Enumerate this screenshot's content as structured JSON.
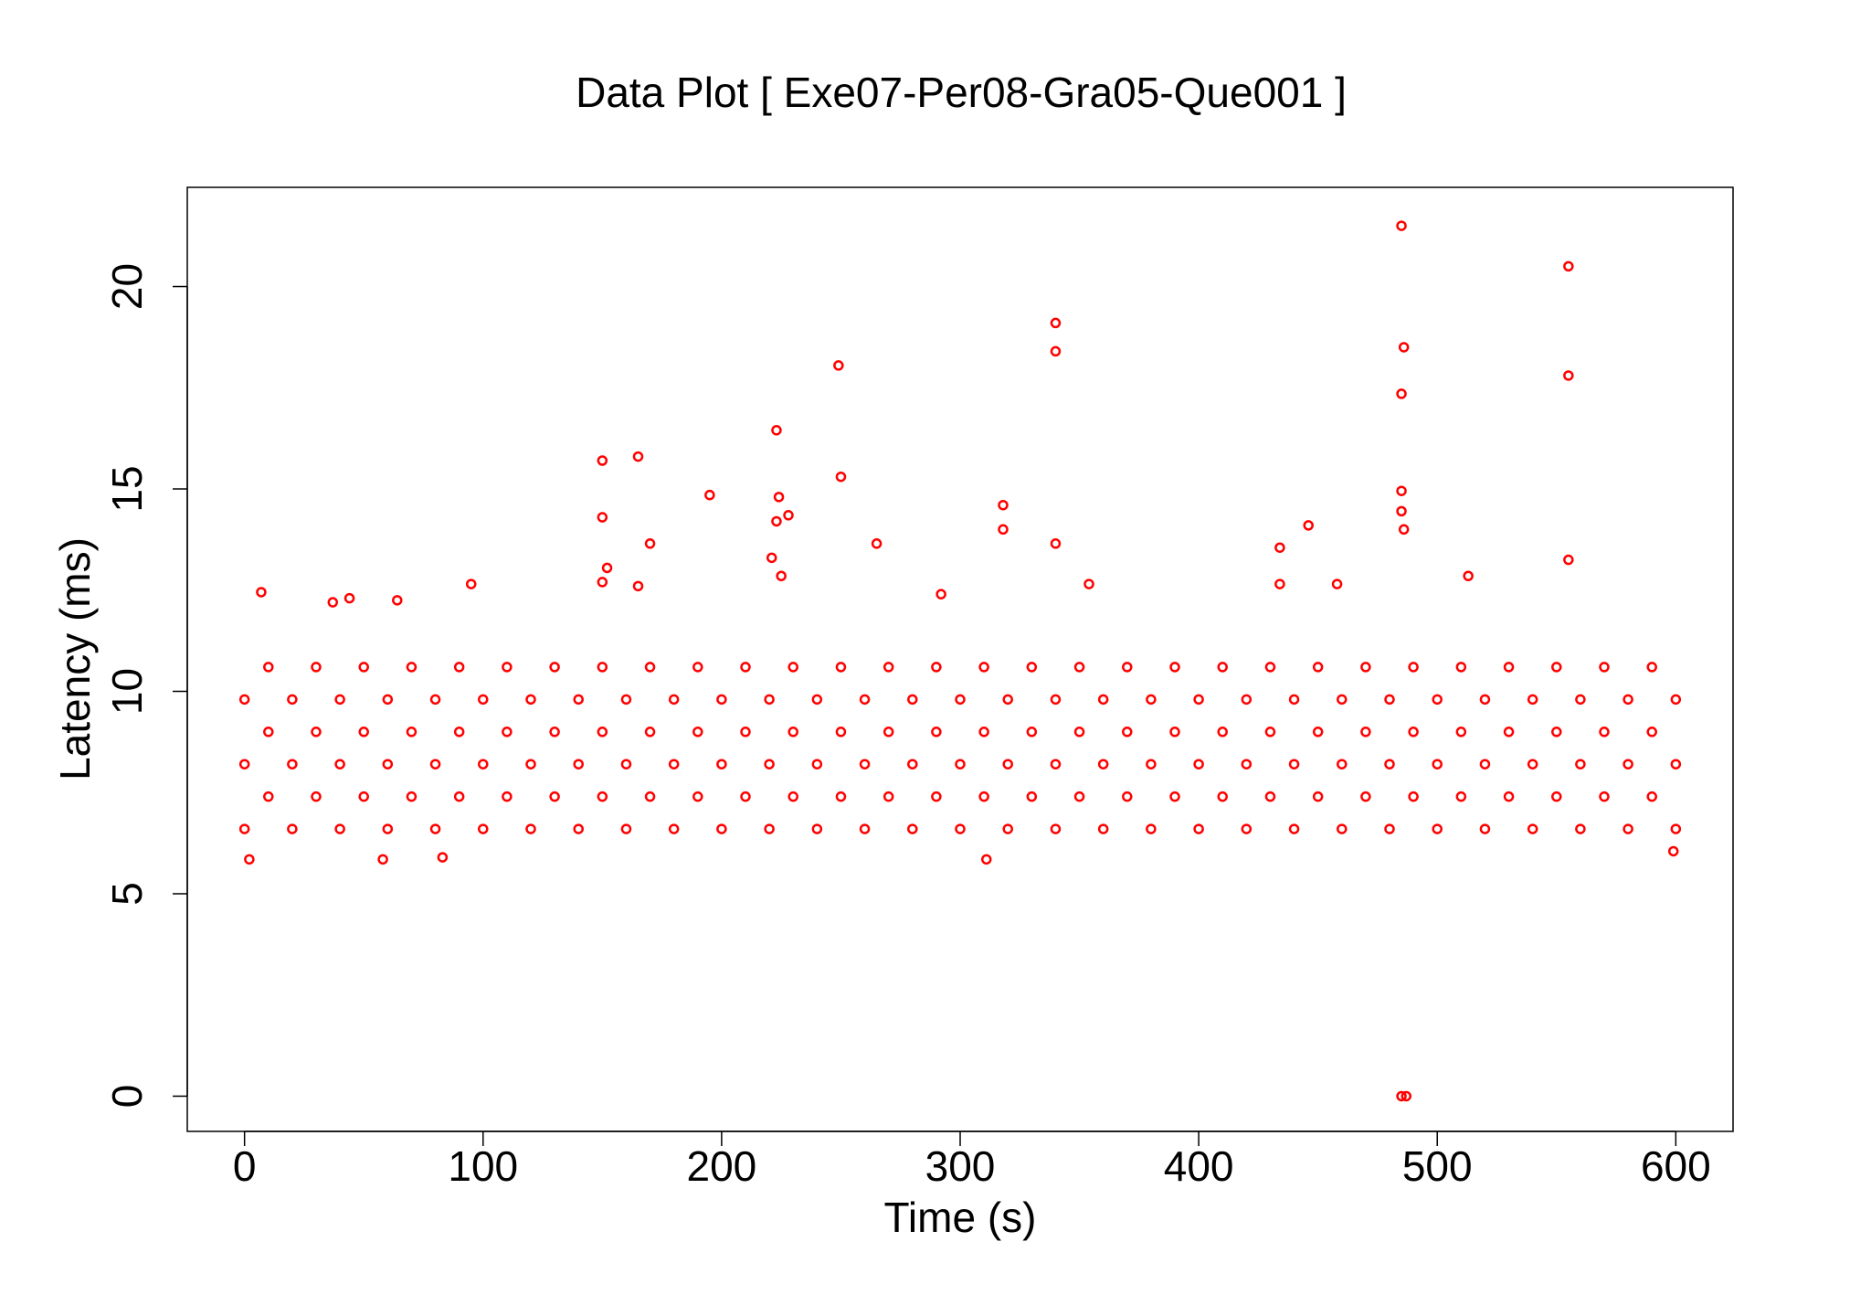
{
  "chart_data": {
    "type": "scatter",
    "title": "Data Plot [ Exe07-Per08-Gra05-Que001 ]",
    "x_label": "Time (s)",
    "y_label": "Latency (ms)",
    "xlim": [
      -24,
      624
    ],
    "ylim": [
      -0.87,
      22.45
    ],
    "xticks": [
      0,
      100,
      200,
      300,
      400,
      500,
      600
    ],
    "yticks": [
      0,
      5,
      10,
      15,
      20
    ],
    "grid": false,
    "series": [
      {
        "color": "#ff0000",
        "x": [
          485,
          555,
          340,
          340,
          249,
          486,
          485,
          555,
          223,
          150,
          165,
          250,
          195,
          224,
          228,
          223,
          150,
          318,
          318,
          485,
          485,
          486,
          446,
          265,
          340,
          170,
          434,
          555,
          221,
          152,
          225,
          513,
          7,
          44,
          64,
          95,
          37,
          150,
          165,
          292,
          354,
          434,
          458,
          485,
          487,
          2,
          58,
          83,
          311,
          599,
          0,
          20,
          40,
          60,
          80,
          100,
          120,
          140,
          160,
          180,
          200,
          220,
          240,
          260,
          280,
          300,
          320,
          340,
          360,
          380,
          400,
          420,
          440,
          460,
          480,
          500,
          520,
          540,
          560,
          580,
          600,
          10,
          30,
          50,
          70,
          90,
          110,
          130,
          150,
          170,
          190,
          210,
          230,
          250,
          270,
          290,
          310,
          330,
          350,
          370,
          390,
          410,
          430,
          450,
          470,
          490,
          510,
          530,
          550,
          570,
          590,
          0,
          20,
          40,
          60,
          80,
          100,
          120,
          140,
          160,
          180,
          200,
          220,
          240,
          260,
          280,
          300,
          320,
          340,
          360,
          380,
          400,
          420,
          440,
          460,
          480,
          500,
          520,
          540,
          560,
          580,
          600,
          10,
          30,
          50,
          70,
          90,
          110,
          130,
          150,
          170,
          190,
          210,
          230,
          250,
          270,
          290,
          310,
          330,
          350,
          370,
          390,
          410,
          430,
          450,
          470,
          490,
          510,
          530,
          550,
          570,
          590,
          0,
          20,
          40,
          60,
          80,
          100,
          120,
          140,
          160,
          180,
          200,
          220,
          240,
          260,
          280,
          300,
          320,
          340,
          360,
          380,
          400,
          420,
          440,
          460,
          480,
          500,
          520,
          540,
          560,
          580,
          600,
          10,
          30,
          50,
          70,
          90,
          110,
          130,
          150,
          170,
          190,
          210,
          230,
          250,
          270,
          290,
          310,
          330,
          350,
          370,
          390,
          410,
          430,
          450,
          470,
          490,
          510,
          530,
          550,
          570,
          590
        ],
        "y": [
          21.5,
          20.5,
          19.1,
          18.4,
          18.05,
          18.5,
          17.35,
          17.8,
          16.45,
          15.7,
          15.8,
          15.3,
          14.85,
          14.8,
          14.35,
          14.2,
          14.3,
          14.6,
          14.0,
          14.95,
          14.45,
          14.0,
          14.1,
          13.65,
          13.65,
          13.65,
          13.55,
          13.25,
          13.3,
          13.05,
          12.85,
          12.85,
          12.45,
          12.3,
          12.25,
          12.65,
          12.2,
          12.7,
          12.6,
          12.4,
          12.65,
          12.65,
          12.65,
          0,
          0,
          5.85,
          5.85,
          5.9,
          5.85,
          6.05,
          6.6,
          6.6,
          6.6,
          6.6,
          6.6,
          6.6,
          6.6,
          6.6,
          6.6,
          6.6,
          6.6,
          6.6,
          6.6,
          6.6,
          6.6,
          6.6,
          6.6,
          6.6,
          6.6,
          6.6,
          6.6,
          6.6,
          6.6,
          6.6,
          6.6,
          6.6,
          6.6,
          6.6,
          6.6,
          6.6,
          6.6,
          7.4,
          7.4,
          7.4,
          7.4,
          7.4,
          7.4,
          7.4,
          7.4,
          7.4,
          7.4,
          7.4,
          7.4,
          7.4,
          7.4,
          7.4,
          7.4,
          7.4,
          7.4,
          7.4,
          7.4,
          7.4,
          7.4,
          7.4,
          7.4,
          7.4,
          7.4,
          7.4,
          7.4,
          7.4,
          7.4,
          8.2,
          8.2,
          8.2,
          8.2,
          8.2,
          8.2,
          8.2,
          8.2,
          8.2,
          8.2,
          8.2,
          8.2,
          8.2,
          8.2,
          8.2,
          8.2,
          8.2,
          8.2,
          8.2,
          8.2,
          8.2,
          8.2,
          8.2,
          8.2,
          8.2,
          8.2,
          8.2,
          8.2,
          8.2,
          8.2,
          8.2,
          9.0,
          9.0,
          9.0,
          9.0,
          9.0,
          9.0,
          9.0,
          9.0,
          9.0,
          9.0,
          9.0,
          9.0,
          9.0,
          9.0,
          9.0,
          9.0,
          9.0,
          9.0,
          9.0,
          9.0,
          9.0,
          9.0,
          9.0,
          9.0,
          9.0,
          9.0,
          9.0,
          9.0,
          9.0,
          9.0,
          9.8,
          9.8,
          9.8,
          9.8,
          9.8,
          9.8,
          9.8,
          9.8,
          9.8,
          9.8,
          9.8,
          9.8,
          9.8,
          9.8,
          9.8,
          9.8,
          9.8,
          9.8,
          9.8,
          9.8,
          9.8,
          9.8,
          9.8,
          9.8,
          9.8,
          9.8,
          9.8,
          9.8,
          9.8,
          9.8,
          9.8,
          10.6,
          10.6,
          10.6,
          10.6,
          10.6,
          10.6,
          10.6,
          10.6,
          10.6,
          10.6,
          10.6,
          10.6,
          10.6,
          10.6,
          10.6,
          10.6,
          10.6,
          10.6,
          10.6,
          10.6,
          10.6,
          10.6,
          10.6,
          10.6,
          10.6,
          10.6,
          10.6,
          10.6,
          10.6,
          10.6
        ]
      }
    ]
  }
}
